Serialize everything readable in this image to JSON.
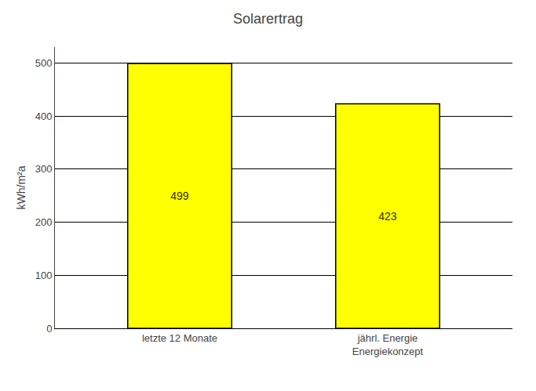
{
  "chart_data": {
    "type": "bar",
    "title": "Solarertrag",
    "ylabel": "kWh/m²a",
    "categories": [
      "letzte 12 Monate",
      "jährl. Energie\nEnergiekonzept"
    ],
    "values": [
      499,
      423
    ],
    "color": "#FFFF00",
    "ylim": [
      0,
      530
    ],
    "yticks": [
      0,
      100,
      200,
      300,
      400,
      500
    ],
    "grid": true,
    "data_labels": true
  }
}
